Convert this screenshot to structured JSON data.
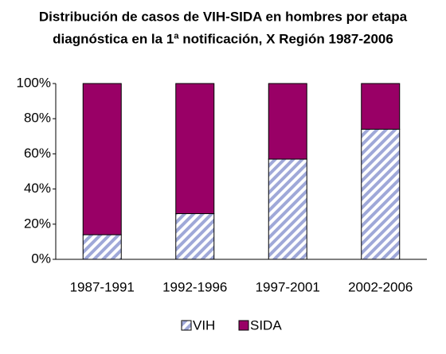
{
  "chart_data": {
    "type": "stacked_bar",
    "title": [
      "Distribución de casos de VIH-SIDA en hombres por etapa",
      "diagnóstica en la 1ª notificación, X Región 1987-2006"
    ],
    "categories": [
      "1987-1991",
      "1992-1996",
      "1997-2001",
      "2002-2006"
    ],
    "series": [
      {
        "name": "VIH",
        "color": "#9fa8d8",
        "values": [
          14,
          26,
          57,
          74
        ]
      },
      {
        "name": "SIDA",
        "color": "#990066",
        "values": [
          86,
          74,
          43,
          26
        ]
      }
    ],
    "ylim": [
      0,
      100
    ],
    "yticks": [
      {
        "value": 0,
        "label": "0%"
      },
      {
        "value": 20,
        "label": "20%"
      },
      {
        "value": 40,
        "label": "40%"
      },
      {
        "value": 60,
        "label": "60%"
      },
      {
        "value": 80,
        "label": "80%"
      },
      {
        "value": 100,
        "label": "100%"
      }
    ],
    "grid": false,
    "legend": "bottom"
  }
}
